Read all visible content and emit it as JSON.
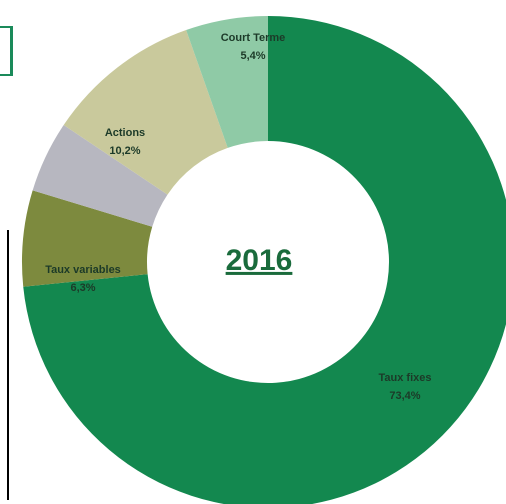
{
  "chart_data": {
    "type": "donut",
    "title": "2016",
    "categories": [
      "Taux fixes",
      "Taux variables",
      null,
      "Actions",
      "Court Terme"
    ],
    "values": [
      73.4,
      6.3,
      4.7,
      10.2,
      5.4
    ],
    "value_labels": [
      "73,4%",
      "6,3%",
      null,
      "10,2%",
      "5,4%"
    ],
    "colors": [
      "#13884f",
      "#7d8a3e",
      "#b7b7c0",
      "#c9c99c",
      "#8fcaa6"
    ]
  }
}
